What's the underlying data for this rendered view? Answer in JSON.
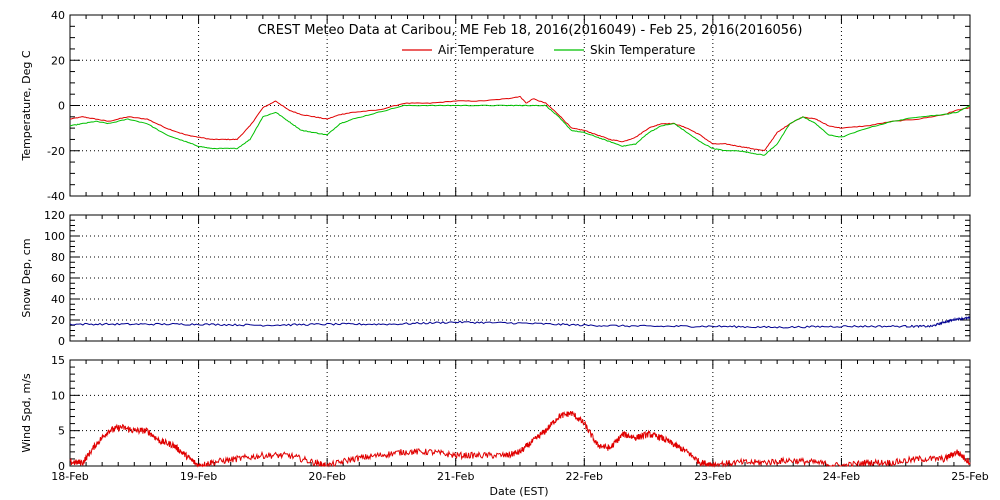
{
  "chart_data": [
    {
      "type": "line",
      "title": "CREST Meteo Data at Caribou, ME   Feb 18, 2016(2016049) - Feb 25, 2016(2016056)",
      "ylabel": "Temperature, Deg C",
      "xlabel": "",
      "ylim": [
        -40,
        40
      ],
      "yticks": [
        -40,
        -20,
        0,
        20,
        40
      ],
      "xlim": [
        18,
        25
      ],
      "grid": true,
      "legend": "top-center",
      "series": [
        {
          "name": "Air Temperature",
          "color": "#e00000",
          "x": [
            18.0,
            18.1,
            18.2,
            18.3,
            18.45,
            18.6,
            18.75,
            18.9,
            19.0,
            19.1,
            19.2,
            19.3,
            19.4,
            19.5,
            19.6,
            19.7,
            19.8,
            19.9,
            20.0,
            20.1,
            20.2,
            20.4,
            20.6,
            20.8,
            21.0,
            21.2,
            21.4,
            21.5,
            21.55,
            21.6,
            21.7,
            21.8,
            21.9,
            22.0,
            22.1,
            22.2,
            22.3,
            22.4,
            22.5,
            22.6,
            22.7,
            22.8,
            22.9,
            23.0,
            23.1,
            23.2,
            23.3,
            23.4,
            23.5,
            23.6,
            23.7,
            23.8,
            23.9,
            24.0,
            24.2,
            24.4,
            24.6,
            24.8,
            24.9,
            25.0
          ],
          "y": [
            -6,
            -5,
            -6,
            -7,
            -5,
            -6,
            -10,
            -13,
            -14,
            -15,
            -15,
            -15,
            -9,
            -1,
            2,
            -2,
            -4,
            -5,
            -6,
            -4,
            -3,
            -2,
            1,
            1,
            2,
            2,
            3,
            4,
            1,
            3,
            1,
            -4,
            -10,
            -11,
            -13,
            -15,
            -16,
            -14,
            -10,
            -8,
            -8,
            -10,
            -13,
            -17,
            -17,
            -18,
            -19,
            -20,
            -12,
            -8,
            -5,
            -6,
            -9,
            -10,
            -9,
            -7,
            -6,
            -4,
            -2,
            -1
          ]
        },
        {
          "name": "Skin Temperature",
          "color": "#00c000",
          "x": [
            18.0,
            18.1,
            18.2,
            18.3,
            18.45,
            18.6,
            18.75,
            18.9,
            19.0,
            19.1,
            19.2,
            19.3,
            19.4,
            19.5,
            19.6,
            19.7,
            19.8,
            19.9,
            20.0,
            20.1,
            20.2,
            20.4,
            20.6,
            20.8,
            21.0,
            21.2,
            21.4,
            21.5,
            21.55,
            21.6,
            21.7,
            21.8,
            21.9,
            22.0,
            22.1,
            22.2,
            22.3,
            22.4,
            22.5,
            22.6,
            22.7,
            22.8,
            22.9,
            23.0,
            23.1,
            23.2,
            23.3,
            23.4,
            23.5,
            23.6,
            23.7,
            23.8,
            23.9,
            24.0,
            24.2,
            24.4,
            24.6,
            24.8,
            24.9,
            25.0
          ],
          "y": [
            -9,
            -8,
            -7,
            -8,
            -6,
            -8,
            -13,
            -16,
            -18,
            -19,
            -19,
            -19,
            -15,
            -5,
            -3,
            -7,
            -11,
            -12,
            -13,
            -8,
            -6,
            -3,
            0,
            0,
            0,
            0,
            0,
            0,
            0,
            0,
            0,
            -5,
            -11,
            -12,
            -14,
            -16,
            -18,
            -17,
            -12,
            -9,
            -8,
            -12,
            -16,
            -19,
            -20,
            -20,
            -21,
            -22,
            -17,
            -8,
            -5,
            -8,
            -13,
            -14,
            -10,
            -7,
            -5,
            -4,
            -3,
            0
          ]
        }
      ]
    },
    {
      "type": "line",
      "title": "",
      "ylabel": "Snow Dep, cm",
      "xlabel": "",
      "ylim": [
        0,
        120
      ],
      "yticks": [
        0,
        20,
        40,
        60,
        80,
        100,
        120
      ],
      "xlim": [
        18,
        25
      ],
      "grid": true,
      "series": [
        {
          "name": "",
          "color": "#000090",
          "x": [
            18.0,
            18.5,
            19.0,
            19.5,
            20.0,
            20.5,
            21.0,
            21.5,
            22.0,
            22.5,
            23.0,
            23.5,
            24.0,
            24.5,
            24.7,
            24.8,
            24.9,
            25.0
          ],
          "y": [
            16,
            16,
            16,
            15,
            16,
            16,
            18,
            17,
            15,
            14,
            14,
            13,
            14,
            14,
            14,
            18,
            21,
            22
          ]
        }
      ]
    },
    {
      "type": "line",
      "title": "",
      "ylabel": "Wind Spd, m/s",
      "xlabel": "Date (EST)",
      "ylim": [
        0,
        15
      ],
      "yticks": [
        0,
        5,
        10,
        15
      ],
      "xlim": [
        18,
        25
      ],
      "grid": true,
      "xticks": [
        "18-Feb",
        "19-Feb",
        "20-Feb",
        "21-Feb",
        "22-Feb",
        "23-Feb",
        "24-Feb",
        "25-Feb"
      ],
      "series": [
        {
          "name": "",
          "color": "#e00000",
          "x": [
            18.0,
            18.1,
            18.2,
            18.3,
            18.4,
            18.5,
            18.6,
            18.7,
            18.8,
            18.9,
            19.0,
            19.1,
            19.3,
            19.5,
            19.7,
            19.9,
            20.0,
            20.2,
            20.4,
            20.6,
            20.8,
            21.0,
            21.2,
            21.4,
            21.5,
            21.6,
            21.7,
            21.8,
            21.9,
            22.0,
            22.1,
            22.2,
            22.3,
            22.4,
            22.5,
            22.6,
            22.7,
            22.8,
            22.9,
            23.0,
            23.2,
            23.4,
            23.6,
            23.8,
            24.0,
            24.2,
            24.4,
            24.6,
            24.8,
            24.9,
            25.0
          ],
          "y": [
            0.5,
            0.5,
            3,
            5,
            5.5,
            5,
            5,
            3.5,
            3,
            1.5,
            0,
            0.5,
            1,
            1.5,
            1.5,
            0.5,
            0,
            1,
            1.5,
            2,
            2,
            1.5,
            1.5,
            1.5,
            2,
            3.5,
            5,
            7,
            7.5,
            6,
            3,
            2.5,
            4.5,
            4,
            4.5,
            4,
            3,
            2,
            0.5,
            0.2,
            0.5,
            0.5,
            0.8,
            0.5,
            0,
            0.5,
            0.5,
            1,
            1,
            2,
            0.5
          ]
        }
      ]
    }
  ]
}
